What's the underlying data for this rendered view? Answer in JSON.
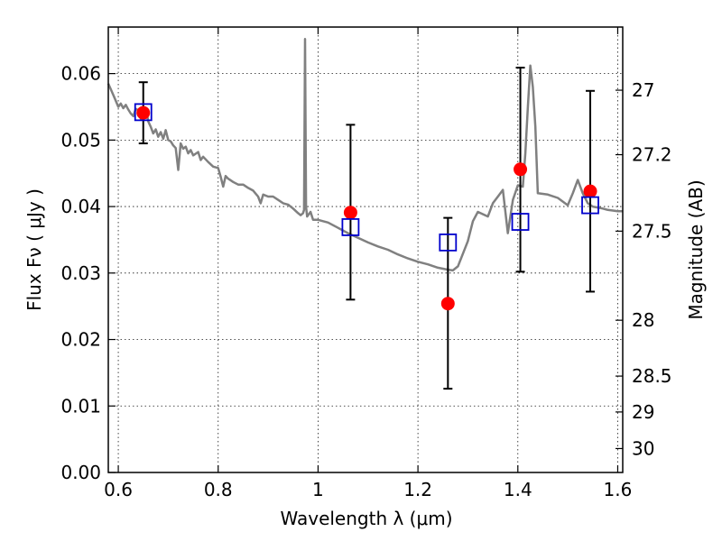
{
  "chart_data": {
    "type": "line",
    "xlabel": "Wavelength  λ (μm)",
    "ylabel": "Flux  Fν  ( μJy )",
    "ylabel_right": "Magnitude (AB)",
    "xlim": [
      0.58,
      1.61
    ],
    "ylim": [
      0.0,
      0.067
    ],
    "grid": true,
    "x_ticks": [
      0.6,
      0.8,
      1.0,
      1.2,
      1.4,
      1.6
    ],
    "x_tick_labels": [
      "0.6",
      "0.8",
      "1",
      "1.2",
      "1.4",
      "1.6"
    ],
    "y_ticks": [
      0.0,
      0.01,
      0.02,
      0.03,
      0.04,
      0.05,
      0.06
    ],
    "y_tick_labels": [
      "0.00",
      "0.01",
      "0.02",
      "0.03",
      "0.04",
      "0.05",
      "0.06"
    ],
    "right_ticks": [
      {
        "label": "27",
        "flux": 0.0575
      },
      {
        "label": "27.2",
        "flux": 0.0478
      },
      {
        "label": "27.5",
        "flux": 0.0363
      },
      {
        "label": "28",
        "flux": 0.0229
      },
      {
        "label": "28.5",
        "flux": 0.0145
      },
      {
        "label": "29",
        "flux": 0.0091
      },
      {
        "label": "30",
        "flux": 0.0036
      }
    ],
    "series": [
      {
        "kind": "spectrum",
        "color": "#808080",
        "points": [
          [
            0.58,
            0.0585
          ],
          [
            0.59,
            0.0568
          ],
          [
            0.6,
            0.055
          ],
          [
            0.605,
            0.0555
          ],
          [
            0.61,
            0.0548
          ],
          [
            0.615,
            0.0553
          ],
          [
            0.62,
            0.0546
          ],
          [
            0.625,
            0.054
          ],
          [
            0.63,
            0.0536
          ],
          [
            0.635,
            0.0547
          ],
          [
            0.64,
            0.0545
          ],
          [
            0.645,
            0.0532
          ],
          [
            0.65,
            0.0535
          ],
          [
            0.655,
            0.0548
          ],
          [
            0.66,
            0.0528
          ],
          [
            0.665,
            0.052
          ],
          [
            0.67,
            0.051
          ],
          [
            0.675,
            0.0516
          ],
          [
            0.68,
            0.0505
          ],
          [
            0.685,
            0.0512
          ],
          [
            0.69,
            0.0502
          ],
          [
            0.695,
            0.0515
          ],
          [
            0.7,
            0.05
          ],
          [
            0.705,
            0.0498
          ],
          [
            0.71,
            0.0492
          ],
          [
            0.715,
            0.0488
          ],
          [
            0.72,
            0.0455
          ],
          [
            0.725,
            0.0495
          ],
          [
            0.73,
            0.0487
          ],
          [
            0.735,
            0.049
          ],
          [
            0.74,
            0.048
          ],
          [
            0.745,
            0.0485
          ],
          [
            0.75,
            0.0477
          ],
          [
            0.76,
            0.0482
          ],
          [
            0.765,
            0.047
          ],
          [
            0.77,
            0.0475
          ],
          [
            0.78,
            0.0467
          ],
          [
            0.79,
            0.046
          ],
          [
            0.8,
            0.0458
          ],
          [
            0.805,
            0.0445
          ],
          [
            0.81,
            0.043
          ],
          [
            0.815,
            0.0446
          ],
          [
            0.82,
            0.0442
          ],
          [
            0.83,
            0.0437
          ],
          [
            0.84,
            0.0433
          ],
          [
            0.85,
            0.0433
          ],
          [
            0.86,
            0.0428
          ],
          [
            0.87,
            0.0424
          ],
          [
            0.88,
            0.0415
          ],
          [
            0.885,
            0.0405
          ],
          [
            0.89,
            0.0418
          ],
          [
            0.9,
            0.0415
          ],
          [
            0.91,
            0.0415
          ],
          [
            0.92,
            0.041
          ],
          [
            0.93,
            0.0405
          ],
          [
            0.94,
            0.0403
          ],
          [
            0.95,
            0.0397
          ],
          [
            0.96,
            0.039
          ],
          [
            0.965,
            0.0387
          ],
          [
            0.97,
            0.039
          ],
          [
            0.972,
            0.0395
          ],
          [
            0.974,
            0.0652
          ],
          [
            0.976,
            0.04
          ],
          [
            0.978,
            0.0385
          ],
          [
            0.985,
            0.0392
          ],
          [
            0.99,
            0.038
          ],
          [
            1.0,
            0.038
          ],
          [
            1.02,
            0.0376
          ],
          [
            1.04,
            0.0368
          ],
          [
            1.06,
            0.036
          ],
          [
            1.08,
            0.0353
          ],
          [
            1.1,
            0.0346
          ],
          [
            1.12,
            0.034
          ],
          [
            1.14,
            0.0335
          ],
          [
            1.16,
            0.0328
          ],
          [
            1.18,
            0.0322
          ],
          [
            1.2,
            0.0317
          ],
          [
            1.22,
            0.0313
          ],
          [
            1.24,
            0.0308
          ],
          [
            1.26,
            0.0305
          ],
          [
            1.27,
            0.0304
          ],
          [
            1.28,
            0.031
          ],
          [
            1.3,
            0.0348
          ],
          [
            1.31,
            0.0378
          ],
          [
            1.32,
            0.0392
          ],
          [
            1.34,
            0.0385
          ],
          [
            1.35,
            0.0405
          ],
          [
            1.36,
            0.0415
          ],
          [
            1.37,
            0.0425
          ],
          [
            1.38,
            0.036
          ],
          [
            1.39,
            0.041
          ],
          [
            1.4,
            0.0432
          ],
          [
            1.41,
            0.043
          ],
          [
            1.415,
            0.048
          ],
          [
            1.42,
            0.055
          ],
          [
            1.425,
            0.0612
          ],
          [
            1.43,
            0.058
          ],
          [
            1.435,
            0.052
          ],
          [
            1.44,
            0.042
          ],
          [
            1.46,
            0.0418
          ],
          [
            1.48,
            0.0413
          ],
          [
            1.5,
            0.0402
          ],
          [
            1.51,
            0.042
          ],
          [
            1.52,
            0.044
          ],
          [
            1.53,
            0.042
          ],
          [
            1.54,
            0.0405
          ],
          [
            1.55,
            0.04
          ],
          [
            1.57,
            0.0397
          ],
          [
            1.58,
            0.0395
          ],
          [
            1.6,
            0.0393
          ],
          [
            1.61,
            0.0393
          ]
        ]
      },
      {
        "kind": "observed",
        "marker": "circle",
        "color": "#ff0000",
        "points": [
          {
            "x": 0.65,
            "y": 0.0541,
            "yerr_low": 0.0495,
            "yerr_high": 0.0587
          },
          {
            "x": 1.065,
            "y": 0.0391,
            "yerr_low": 0.026,
            "yerr_high": 0.0523
          },
          {
            "x": 1.26,
            "y": 0.0254,
            "yerr_low": 0.0126,
            "yerr_high": 0.0383
          },
          {
            "x": 1.405,
            "y": 0.0456,
            "yerr_low": 0.0302,
            "yerr_high": 0.0609
          },
          {
            "x": 1.545,
            "y": 0.0423,
            "yerr_low": 0.0272,
            "yerr_high": 0.0574
          }
        ]
      },
      {
        "kind": "model",
        "marker": "square",
        "color": "#0000cc",
        "points": [
          {
            "x": 0.65,
            "y": 0.0542
          },
          {
            "x": 1.065,
            "y": 0.0369
          },
          {
            "x": 1.26,
            "y": 0.0346
          },
          {
            "x": 1.405,
            "y": 0.0377
          },
          {
            "x": 1.545,
            "y": 0.0402
          }
        ]
      }
    ]
  }
}
